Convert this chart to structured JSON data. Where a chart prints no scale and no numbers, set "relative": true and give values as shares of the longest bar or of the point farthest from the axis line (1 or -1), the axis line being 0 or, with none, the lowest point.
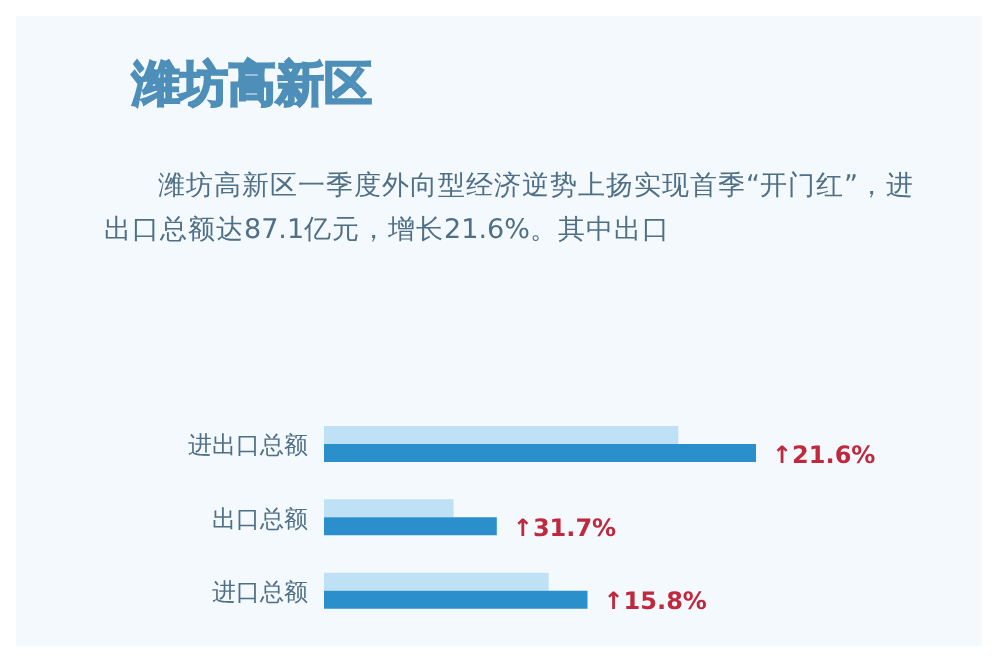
{
  "chart_data": {
    "type": "bar",
    "orientation": "horizontal",
    "relative": true,
    "title": "潍坊高新区",
    "subtitle": "潍坊高新区一季度外向型经济逆势上扬实现首季“开门红”，进出口总额达87.1亿元，增长21.6%。其中出口",
    "categories": [
      "进出口总额",
      "出口总额",
      "进口总额"
    ],
    "series": [
      {
        "color": "#bfe1f5",
        "values": [
          0.82,
          0.3,
          0.52
        ]
      },
      {
        "color": "#2a8fcb",
        "values": [
          1,
          0.4,
          0.61
        ]
      }
    ],
    "annotations": [
      {
        "text": "↑21.6%",
        "x": 1,
        "y": "进出口总额"
      },
      {
        "text": "↑31.7%",
        "x": 0.4,
        "y": "出口总额"
      },
      {
        "text": "↑15.8%",
        "x": 0.61,
        "y": "进口总额"
      }
    ]
  }
}
